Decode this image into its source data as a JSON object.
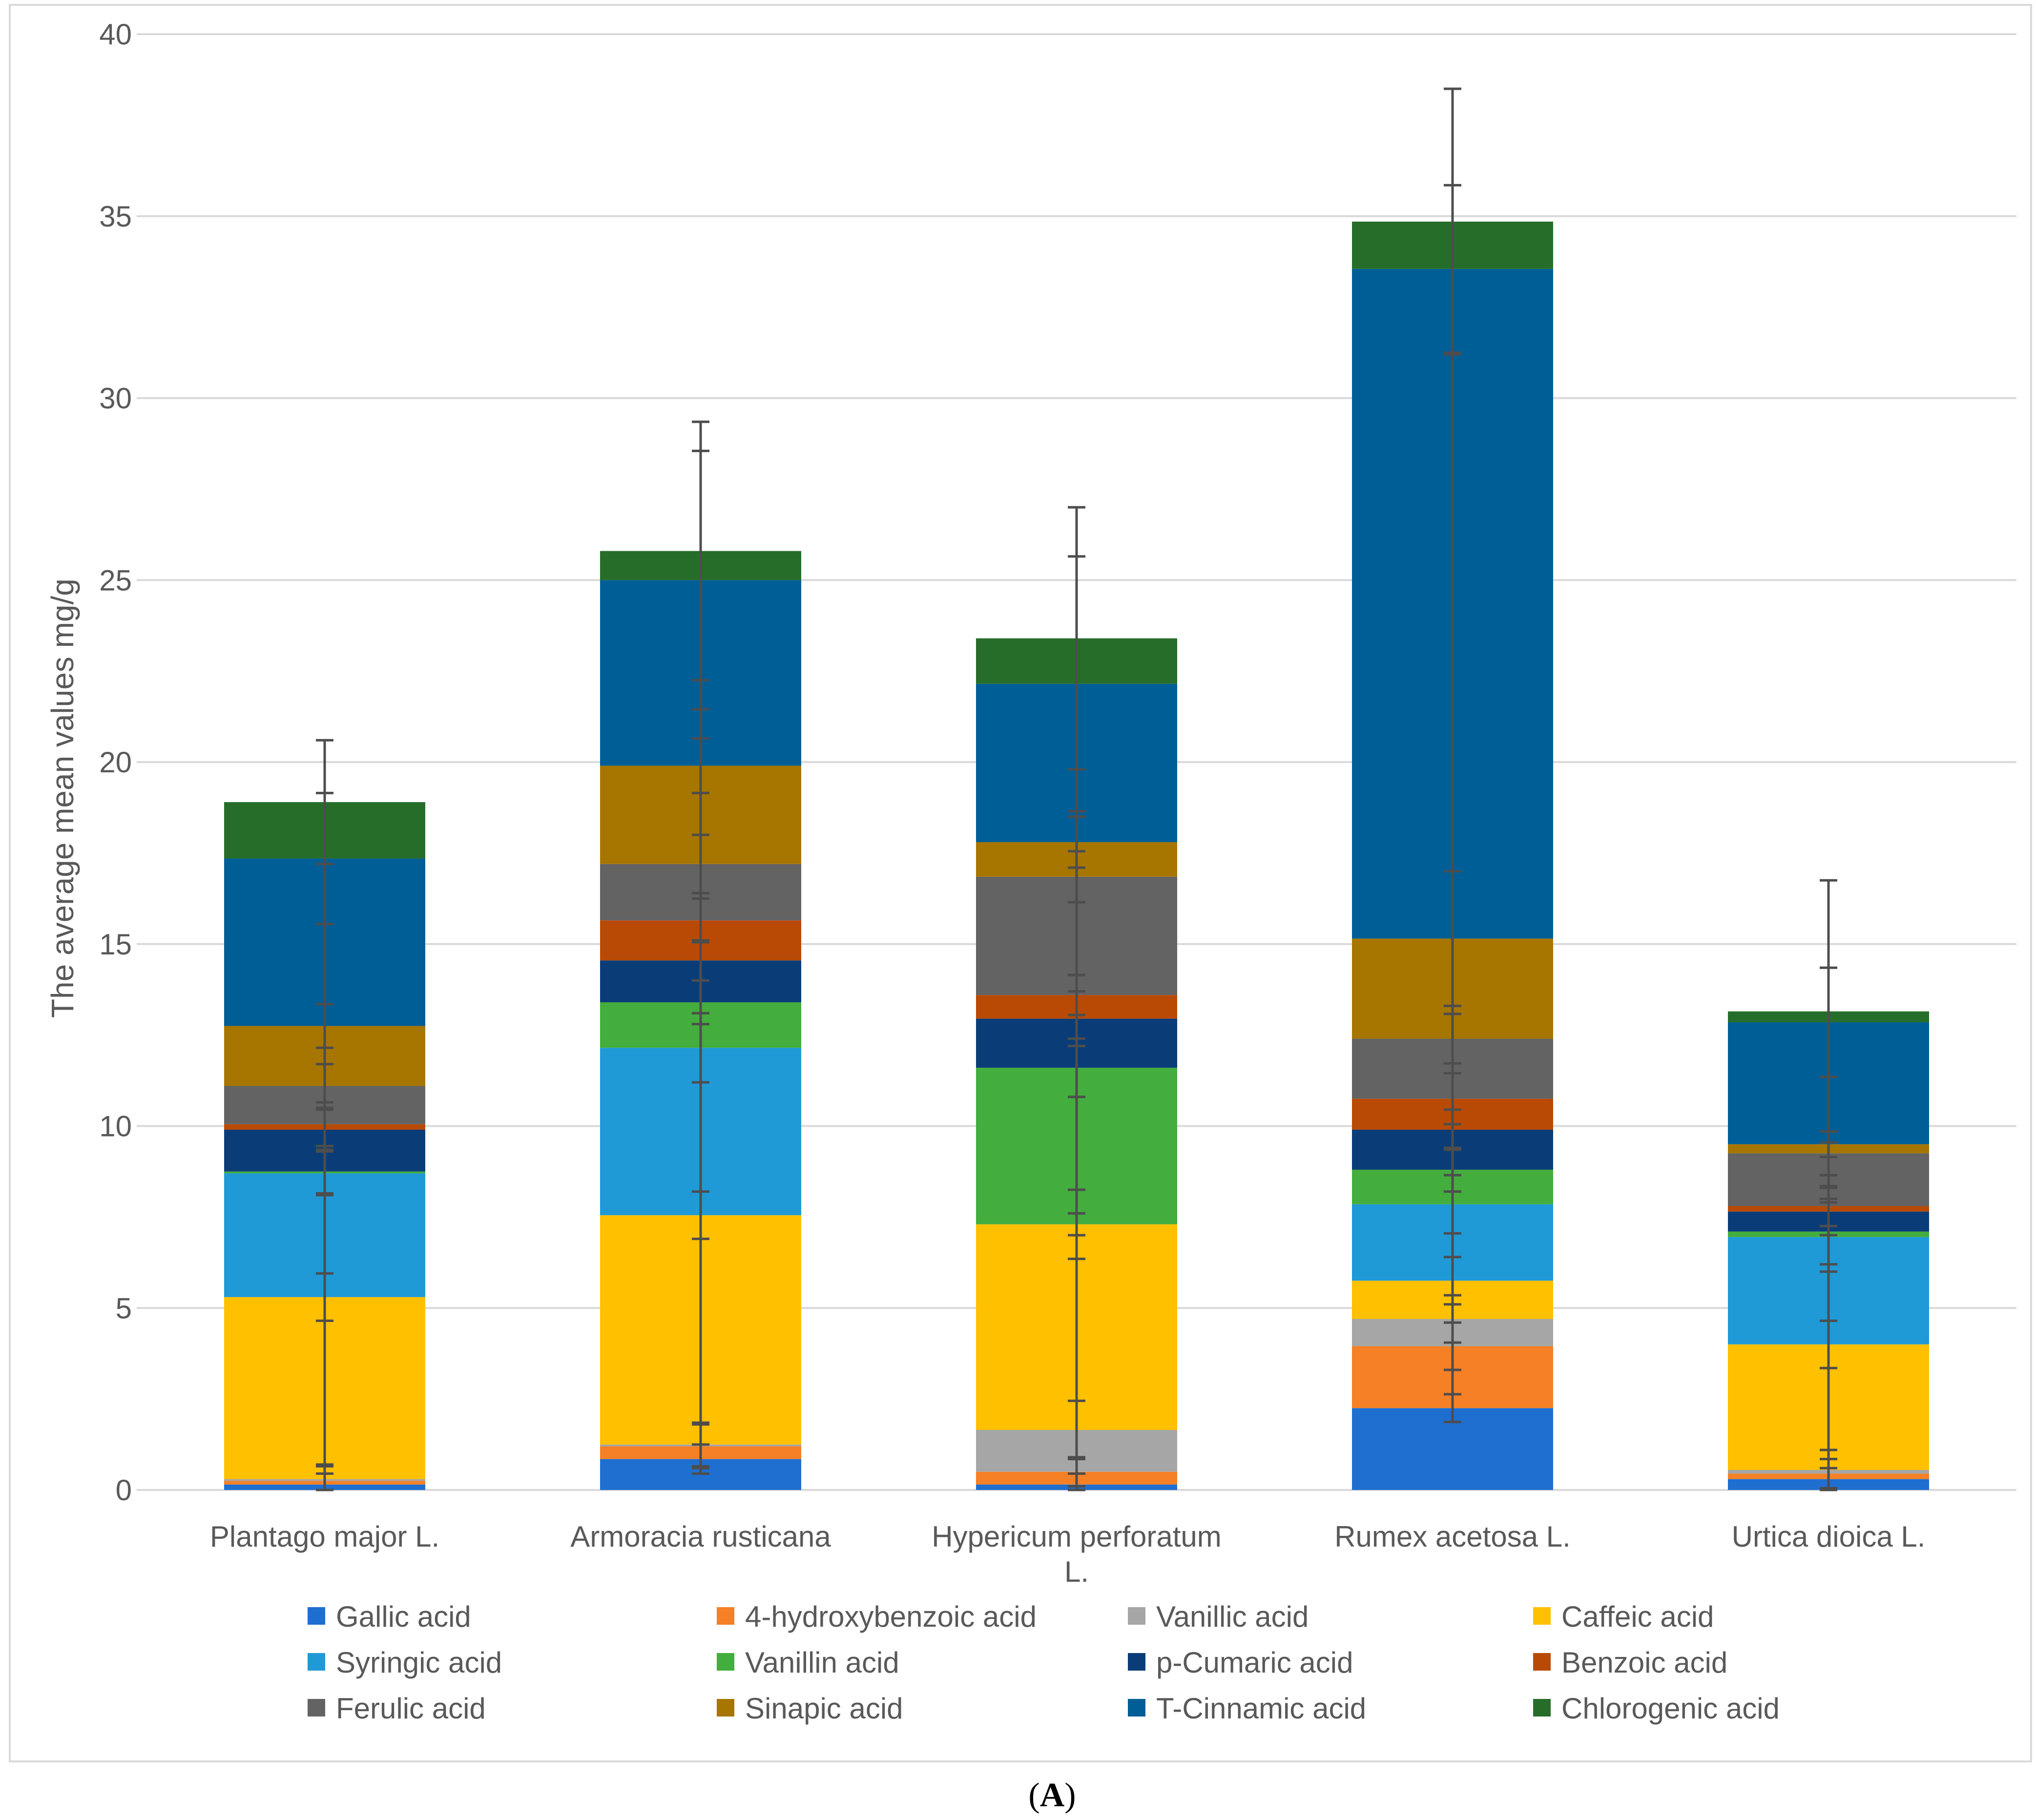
{
  "chart_data": {
    "type": "bar",
    "stacked": true,
    "title": "",
    "panel_label": {
      "open": "(",
      "letter": "A",
      "close": ")"
    },
    "xlabel": "",
    "ylabel": "The average mean values mg/g",
    "ylim": [
      0,
      40
    ],
    "yticks": [
      "0",
      "5",
      "10",
      "15",
      "20",
      "25",
      "30",
      "35",
      "40"
    ],
    "grid": true,
    "legend_position": "bottom",
    "categories": [
      [
        "Plantago major L."
      ],
      [
        "Armoracia rusticana"
      ],
      [
        "Hypericum perforatum",
        "L."
      ],
      [
        "Rumex acetosa L."
      ],
      [
        "Urtica dioica L."
      ]
    ],
    "series": [
      {
        "name": "Gallic acid",
        "color": "#1f6fd0",
        "values": [
          0.15,
          0.85,
          0.15,
          2.25,
          0.3
        ]
      },
      {
        "name": "4-hydroxybenzoic acid",
        "color": "#f58025",
        "values": [
          0.1,
          0.35,
          0.35,
          1.7,
          0.15
        ]
      },
      {
        "name": "Vanillic  acid",
        "color": "#a6a6a6",
        "values": [
          0.05,
          0.05,
          1.15,
          0.75,
          0.1
        ]
      },
      {
        "name": "Caffeic acid",
        "color": "#ffc000",
        "values": [
          5.0,
          6.3,
          5.65,
          1.05,
          3.45
        ]
      },
      {
        "name": "Syringic acid",
        "color": "#1f9ad6",
        "values": [
          3.4,
          4.6,
          0.0,
          2.1,
          2.95
        ]
      },
      {
        "name": "Vanillin acid",
        "color": "#43ad3d",
        "values": [
          0.05,
          1.25,
          4.3,
          0.95,
          0.15
        ]
      },
      {
        "name": "p-Cumaric acid",
        "color": "#0a3d78",
        "values": [
          1.15,
          1.15,
          1.35,
          1.1,
          0.55
        ]
      },
      {
        "name": "Benzoic acid",
        "color": "#b84a05",
        "values": [
          0.15,
          1.1,
          0.65,
          0.85,
          0.15
        ]
      },
      {
        "name": "Ferulic acid",
        "color": "#636363",
        "values": [
          1.05,
          1.55,
          3.25,
          1.65,
          1.45
        ]
      },
      {
        "name": "Sinapic acid",
        "color": "#a67600",
        "values": [
          1.65,
          2.7,
          0.95,
          2.75,
          0.25
        ]
      },
      {
        "name": "T-Cinnamic acid",
        "color": "#005e97",
        "values": [
          4.6,
          5.1,
          4.35,
          18.4,
          3.35
        ]
      },
      {
        "name": "Chlorogenic acid",
        "color": "#276d2a",
        "values": [
          1.55,
          0.8,
          1.25,
          1.3,
          0.3
        ]
      }
    ],
    "error_bars": [
      [
        0.3,
        0.4,
        0.4,
        0.65,
        0.6,
        0.6,
        0.55,
        0.6,
        0.6,
        0.6,
        1.8,
        1.7
      ],
      [
        0.4,
        0.6,
        0.6,
        0.65,
        0.95,
        0.6,
        0.55,
        0.6,
        0.8,
        0.75,
        3.55,
        3.55
      ],
      [
        0.3,
        0.4,
        0.8,
        0.95,
        0.3,
        0.8,
        0.75,
        0.55,
        0.7,
        0.7,
        3.5,
        3.6
      ],
      [
        0.38,
        0.65,
        0.65,
        0.65,
        0.8,
        0.6,
        0.55,
        0.7,
        0.68,
        1.85,
        2.3,
        3.65
      ],
      [
        0.3,
        0.4,
        0.55,
        0.65,
        0.95,
        0.9,
        0.65,
        0.55,
        0.6,
        0.35,
        1.5,
        3.6
      ]
    ]
  }
}
